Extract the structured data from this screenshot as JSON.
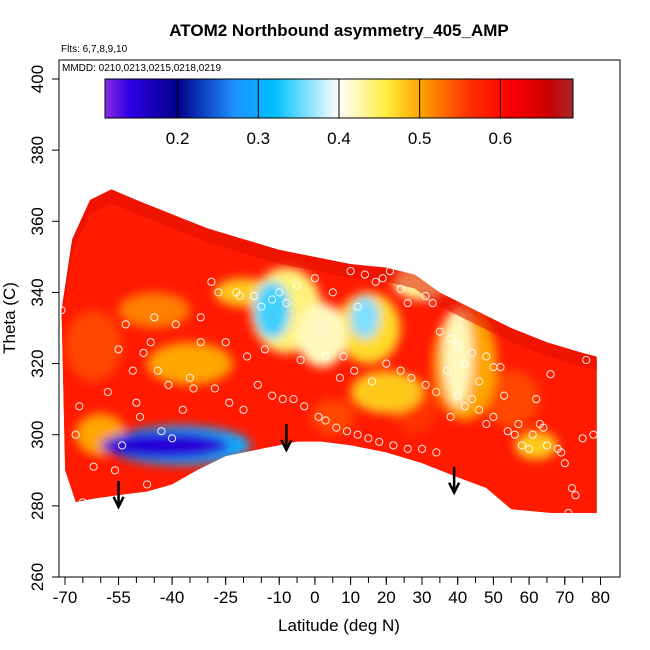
{
  "chart_data": {
    "type": "heatmap",
    "title": "ATOM2 Northbound asymmetry_405_AMP",
    "annotations": {
      "flights": "Flts: 6,7,8,9,10",
      "dates": "MMDD: 0210,0213,0215,0218,0219"
    },
    "xlabel": "Latitude (deg N)",
    "ylabel": "Theta (C)",
    "xlim": [
      -73,
      83
    ],
    "ylim": [
      260,
      400
    ],
    "x_ticks": [
      -70,
      -55,
      -40,
      -25,
      -10,
      0,
      10,
      20,
      30,
      40,
      50,
      60,
      70,
      80
    ],
    "x_tick_labels": [
      "-70",
      "-55",
      "-40",
      "-25",
      "-10",
      "0",
      "10",
      "20",
      "30",
      "40",
      "50",
      "60",
      "70",
      "80"
    ],
    "x_minor_step": 5,
    "y_ticks": [
      260,
      280,
      300,
      320,
      340,
      360,
      380,
      400
    ],
    "y_tick_labels": [
      "260",
      "280",
      "300",
      "320",
      "340",
      "360",
      "380",
      "400"
    ],
    "colorbar": {
      "range": [
        0.11,
        0.69
      ],
      "ticks": [
        0.2,
        0.3,
        0.4,
        0.5,
        0.6
      ],
      "tick_labels": [
        "0.2",
        "0.3",
        "0.4",
        "0.5",
        "0.6"
      ],
      "stops": [
        {
          "v": 0.11,
          "color": "#8a2be2"
        },
        {
          "v": 0.14,
          "color": "#2e00e6"
        },
        {
          "v": 0.2,
          "color": "#00008b"
        },
        {
          "v": 0.27,
          "color": "#1e90ff"
        },
        {
          "v": 0.32,
          "color": "#00bfff"
        },
        {
          "v": 0.4,
          "color": "#ffffff"
        },
        {
          "v": 0.46,
          "color": "#ffec3a"
        },
        {
          "v": 0.5,
          "color": "#ffa500"
        },
        {
          "v": 0.56,
          "color": "#ff3300"
        },
        {
          "v": 0.61,
          "color": "#ff0000"
        },
        {
          "v": 0.66,
          "color": "#cc0000"
        },
        {
          "v": 0.69,
          "color": "#a52a2a"
        }
      ]
    },
    "data_envelope": {
      "upper": [
        [
          -71,
          335
        ],
        [
          -68,
          355
        ],
        [
          -63,
          366
        ],
        [
          -57,
          369
        ],
        [
          -50,
          366
        ],
        [
          -40,
          362
        ],
        [
          -30,
          358
        ],
        [
          -20,
          355
        ],
        [
          -10,
          352
        ],
        [
          0,
          350
        ],
        [
          10,
          348
        ],
        [
          20,
          347
        ],
        [
          28,
          345
        ],
        [
          35,
          340
        ],
        [
          45,
          335
        ],
        [
          55,
          330
        ],
        [
          65,
          326
        ],
        [
          75,
          323
        ],
        [
          79,
          322
        ]
      ],
      "lower": [
        [
          79,
          278
        ],
        [
          66,
          278
        ],
        [
          55,
          279
        ],
        [
          48,
          285
        ],
        [
          40,
          288
        ],
        [
          30,
          292
        ],
        [
          20,
          295
        ],
        [
          10,
          297
        ],
        [
          2,
          298
        ],
        [
          -5,
          298
        ],
        [
          -15,
          296
        ],
        [
          -25,
          294
        ],
        [
          -33,
          290
        ],
        [
          -40,
          286
        ],
        [
          -47,
          284
        ],
        [
          -55,
          283
        ],
        [
          -62,
          282
        ],
        [
          -67,
          281
        ],
        [
          -70,
          290
        ]
      ]
    },
    "blobs": [
      {
        "lat": -42,
        "theta": 297,
        "rx": 18,
        "ry": 4,
        "value": 0.15
      },
      {
        "lat": -38,
        "theta": 297,
        "rx": 20,
        "ry": 5.5,
        "value": 0.3
      },
      {
        "lat": -12,
        "theta": 335,
        "rx": 5,
        "ry": 8,
        "value": 0.34
      },
      {
        "lat": -8,
        "theta": 335,
        "rx": 10,
        "ry": 12,
        "value": 0.44
      },
      {
        "lat": 2,
        "theta": 328,
        "rx": 7,
        "ry": 9,
        "value": 0.42
      },
      {
        "lat": 14,
        "theta": 333,
        "rx": 4,
        "ry": 6,
        "value": 0.36
      },
      {
        "lat": 15,
        "theta": 330,
        "rx": 9,
        "ry": 10,
        "value": 0.47
      },
      {
        "lat": 30,
        "theta": 343,
        "rx": 8,
        "ry": 5,
        "value": 0.43
      },
      {
        "lat": 40,
        "theta": 322,
        "rx": 4,
        "ry": 14,
        "value": 0.42
      },
      {
        "lat": 42,
        "theta": 320,
        "rx": 9,
        "ry": 16,
        "value": 0.5
      },
      {
        "lat": 20,
        "theta": 312,
        "rx": 10,
        "ry": 6,
        "value": 0.48
      },
      {
        "lat": -60,
        "theta": 300,
        "rx": 7,
        "ry": 6,
        "value": 0.5
      },
      {
        "lat": -35,
        "theta": 320,
        "rx": 12,
        "ry": 6,
        "value": 0.5
      },
      {
        "lat": -45,
        "theta": 335,
        "rx": 10,
        "ry": 5,
        "value": 0.52
      },
      {
        "lat": -20,
        "theta": 340,
        "rx": 8,
        "ry": 4,
        "value": 0.48
      },
      {
        "lat": 62,
        "theta": 297,
        "rx": 6,
        "ry": 4,
        "value": 0.48
      },
      {
        "lat": 55,
        "theta": 310,
        "rx": 8,
        "ry": 8,
        "value": 0.55
      },
      {
        "lat": -62,
        "theta": 325,
        "rx": 8,
        "ry": 10,
        "value": 0.55
      },
      {
        "lat": 5,
        "theta": 305,
        "rx": 6,
        "ry": 5,
        "value": 0.55
      },
      {
        "lat": 28,
        "theta": 308,
        "rx": 6,
        "ry": 8,
        "value": 0.56
      }
    ],
    "arrows": [
      {
        "lat": -55,
        "theta_top": 287,
        "theta_bottom": 280
      },
      {
        "lat": -8,
        "theta_top": 303,
        "theta_bottom": 296
      },
      {
        "lat": 39,
        "theta_top": 291,
        "theta_bottom": 284
      }
    ],
    "points": [
      [
        -69,
        360
      ],
      [
        -71,
        335
      ],
      [
        -66,
        308
      ],
      [
        -67,
        300
      ],
      [
        -65,
        281
      ],
      [
        -62,
        291
      ],
      [
        -55,
        324
      ],
      [
        -53,
        331
      ],
      [
        -54,
        297
      ],
      [
        -51,
        318
      ],
      [
        -50,
        309
      ],
      [
        -48,
        323
      ],
      [
        -49,
        305
      ],
      [
        -47,
        286
      ],
      [
        -45,
        333
      ],
      [
        -43,
        301
      ],
      [
        -40,
        299
      ],
      [
        -35,
        316
      ],
      [
        -32,
        326
      ],
      [
        -32,
        333
      ],
      [
        -29,
        343
      ],
      [
        -27,
        340
      ],
      [
        -22,
        340
      ],
      [
        -21,
        339
      ],
      [
        -17,
        339
      ],
      [
        -15,
        336
      ],
      [
        -12,
        338
      ],
      [
        -10,
        340
      ],
      [
        -8,
        337
      ],
      [
        -5,
        342
      ],
      [
        0,
        344
      ],
      [
        2,
        330
      ],
      [
        5,
        340
      ],
      [
        8,
        322
      ],
      [
        10,
        346
      ],
      [
        12,
        336
      ],
      [
        14,
        345
      ],
      [
        17,
        343
      ],
      [
        19,
        344
      ],
      [
        21,
        346
      ],
      [
        24,
        341
      ],
      [
        26,
        337
      ],
      [
        29,
        346
      ],
      [
        31,
        339
      ],
      [
        33,
        337
      ],
      [
        35,
        329
      ],
      [
        38,
        327
      ],
      [
        40,
        325
      ],
      [
        42,
        320
      ],
      [
        44,
        323
      ],
      [
        46,
        315
      ],
      [
        48,
        322
      ],
      [
        50,
        319
      ],
      [
        52,
        319
      ],
      [
        -28,
        313
      ],
      [
        -24,
        309
      ],
      [
        -20,
        307
      ],
      [
        -16,
        314
      ],
      [
        -12,
        311
      ],
      [
        -9,
        310
      ],
      [
        -6,
        310
      ],
      [
        -3,
        308
      ],
      [
        1,
        305
      ],
      [
        3,
        304
      ],
      [
        6,
        302
      ],
      [
        9,
        301
      ],
      [
        12,
        300
      ],
      [
        15,
        299
      ],
      [
        18,
        298
      ],
      [
        22,
        297
      ],
      [
        26,
        296
      ],
      [
        30,
        296
      ],
      [
        34,
        295
      ],
      [
        38,
        305
      ],
      [
        40,
        311
      ],
      [
        42,
        308
      ],
      [
        46,
        307
      ],
      [
        50,
        305
      ],
      [
        54,
        301
      ],
      [
        56,
        300
      ],
      [
        58,
        297
      ],
      [
        60,
        296
      ],
      [
        62,
        310
      ],
      [
        63,
        303
      ],
      [
        64,
        302
      ],
      [
        66,
        317
      ],
      [
        68,
        296
      ],
      [
        70,
        292
      ],
      [
        72,
        285
      ],
      [
        73,
        283
      ],
      [
        75,
        299
      ],
      [
        76,
        321
      ],
      [
        78,
        300
      ],
      [
        80,
        322
      ],
      [
        -56,
        290
      ],
      [
        -58,
        312
      ],
      [
        -37,
        307
      ],
      [
        -41,
        314
      ],
      [
        -44,
        318
      ],
      [
        -46,
        326
      ],
      [
        -39,
        331
      ],
      [
        -34,
        313
      ],
      [
        -25,
        326
      ],
      [
        -19,
        322
      ],
      [
        -14,
        324
      ],
      [
        -4,
        321
      ],
      [
        3,
        322
      ],
      [
        7,
        316
      ],
      [
        11,
        318
      ],
      [
        16,
        315
      ],
      [
        20,
        320
      ],
      [
        24,
        318
      ],
      [
        27,
        316
      ],
      [
        31,
        314
      ],
      [
        34,
        312
      ],
      [
        37,
        318
      ],
      [
        44,
        310
      ],
      [
        48,
        303
      ],
      [
        53,
        311
      ],
      [
        57,
        303
      ],
      [
        61,
        300
      ],
      [
        65,
        297
      ],
      [
        69,
        295
      ],
      [
        71,
        278
      ]
    ]
  }
}
